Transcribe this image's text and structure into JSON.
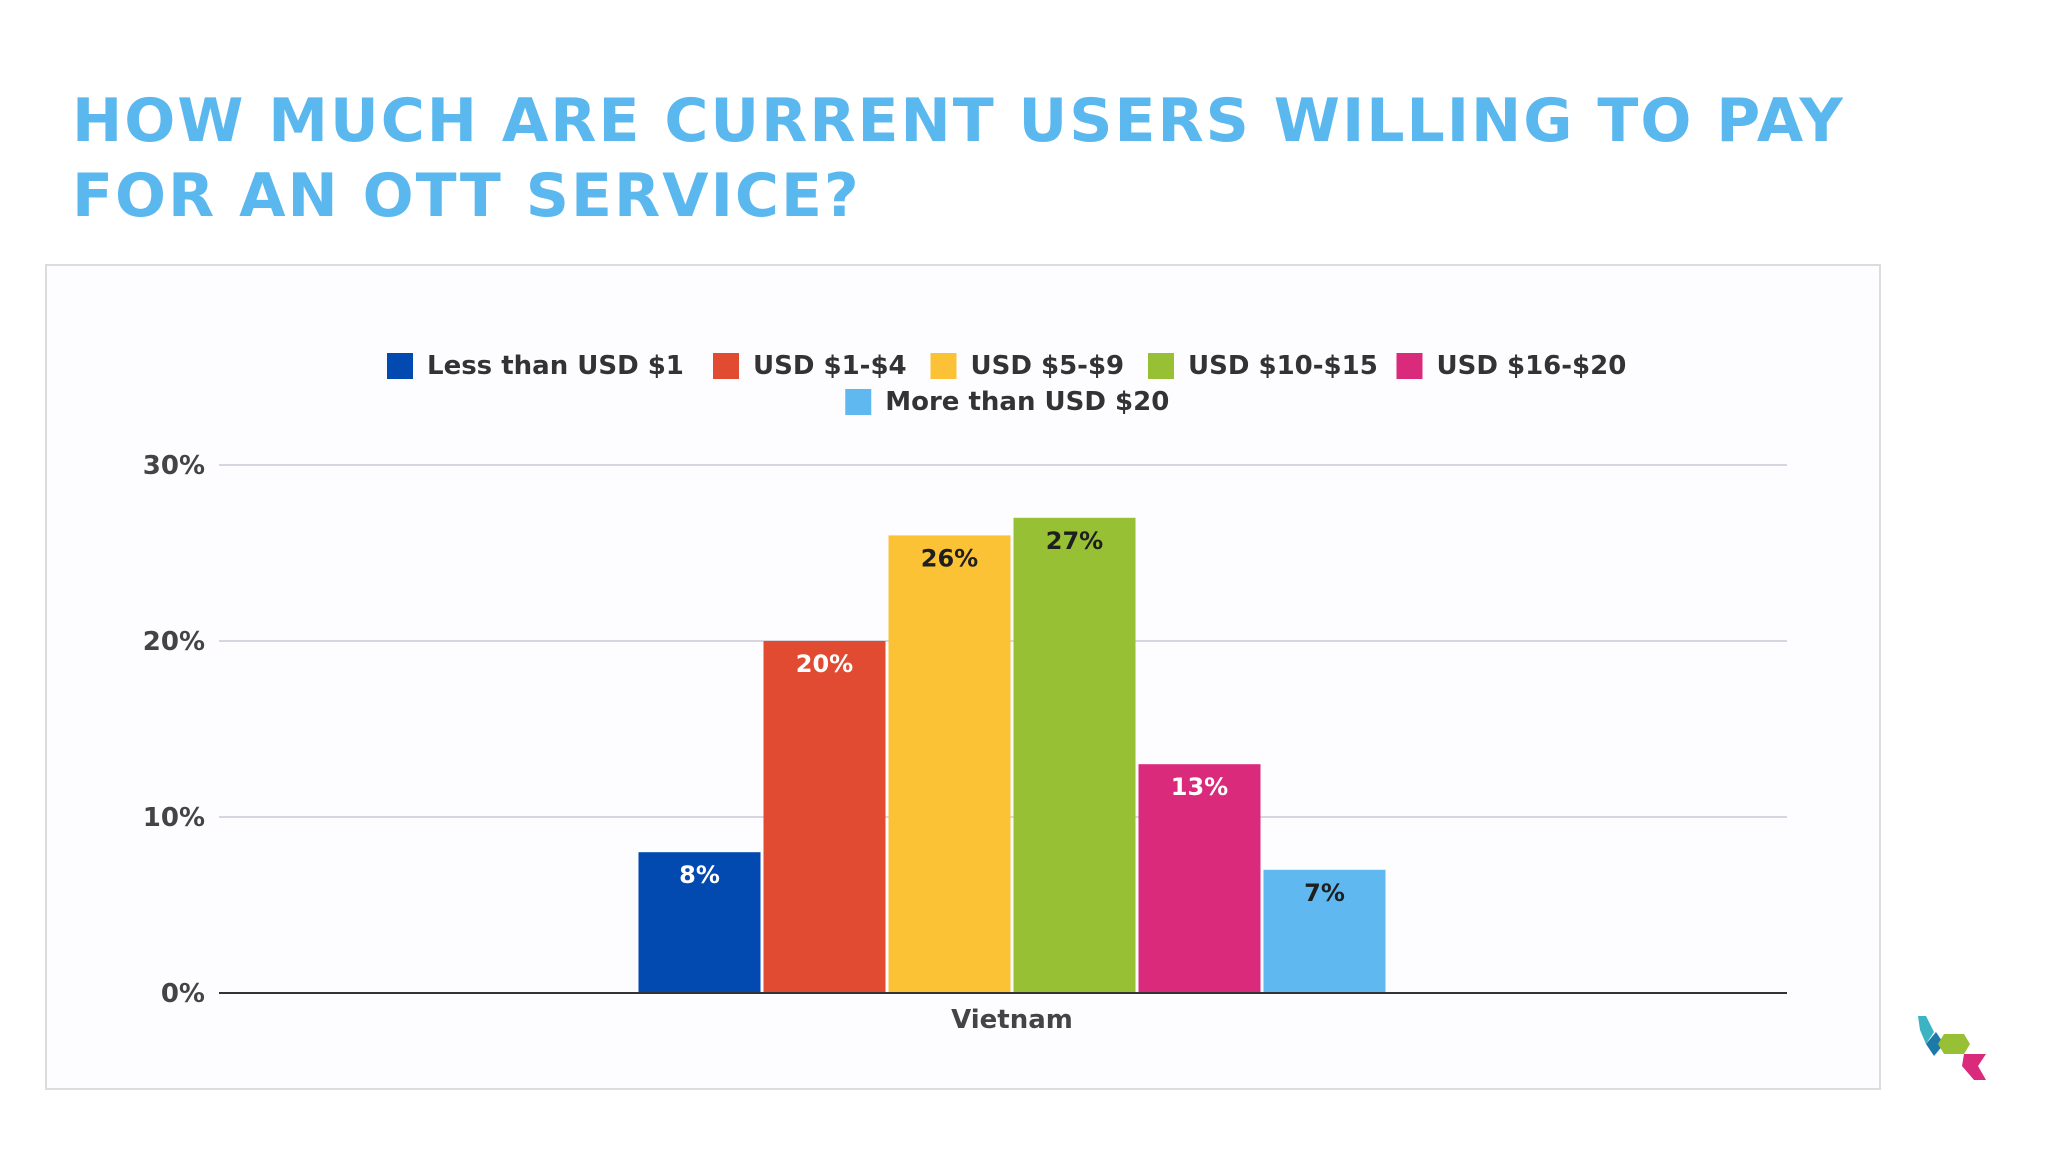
{
  "title": "HOW MUCH ARE CURRENT USERS WILLING TO PAY FOR AN OTT SERVICE?",
  "chart_data": {
    "type": "bar",
    "categories": [
      "Vietnam"
    ],
    "series": [
      {
        "name": "Less than USD $1",
        "color": "#034ab0",
        "values": [
          8
        ],
        "label": "8%",
        "label_color": "#ffffff"
      },
      {
        "name": "USD $1-$4",
        "color": "#e04b31",
        "values": [
          20
        ],
        "label": "20%",
        "label_color": "#ffffff"
      },
      {
        "name": "USD $5-$9",
        "color": "#fbc235",
        "values": [
          26
        ],
        "label": "26%",
        "label_color": "#1f1f1f"
      },
      {
        "name": "USD $10-$15",
        "color": "#98c035",
        "values": [
          27
        ],
        "label": "27%",
        "label_color": "#1f1f1f"
      },
      {
        "name": "USD $16-$20",
        "color": "#d92a7c",
        "values": [
          13
        ],
        "label": "13%",
        "label_color": "#ffffff"
      },
      {
        "name": "More than USD $20",
        "color": "#5fb8f0",
        "values": [
          7
        ],
        "label": "7%",
        "label_color": "#1f1f1f"
      }
    ],
    "ylim": [
      0,
      30
    ],
    "yticks": [
      {
        "value": 0,
        "label": "0%"
      },
      {
        "value": 10,
        "label": "10%"
      },
      {
        "value": 20,
        "label": "20%"
      },
      {
        "value": 30,
        "label": "30%"
      }
    ],
    "xlabel": "",
    "ylabel": "",
    "grid": true,
    "legend_position": "top"
  },
  "logo": {
    "colors": [
      "#3bb3c3",
      "#1d7aa8",
      "#98c035",
      "#d92a7c"
    ]
  }
}
